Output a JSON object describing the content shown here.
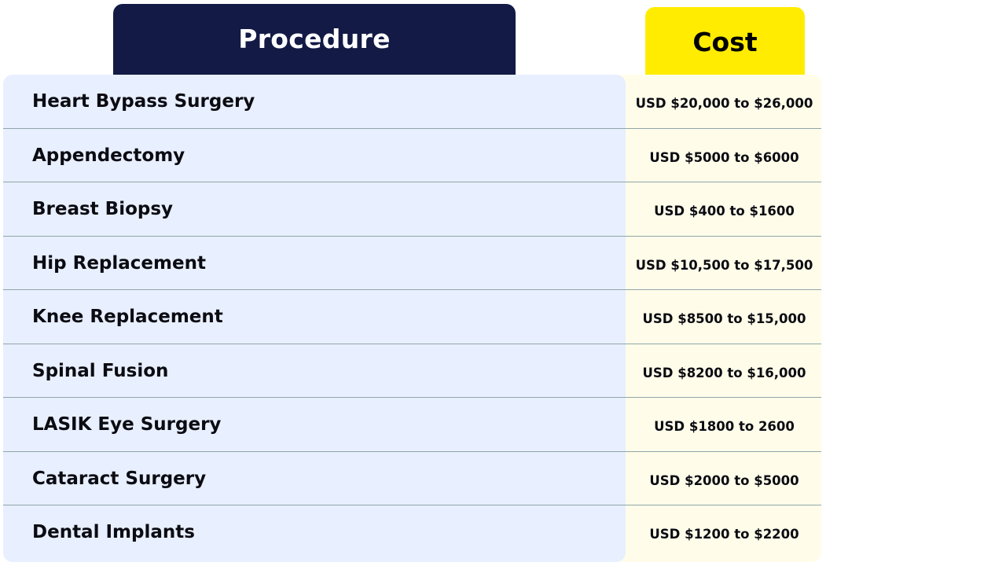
{
  "table": {
    "headers": {
      "procedure": "Procedure",
      "cost": "Cost"
    },
    "rows": [
      {
        "procedure": "Heart Bypass Surgery",
        "cost": "USD $20,000 to $26,000"
      },
      {
        "procedure": "Appendectomy",
        "cost": "USD $5000 to $6000"
      },
      {
        "procedure": "Breast Biopsy",
        "cost": "USD $400 to $1600"
      },
      {
        "procedure": "Hip Replacement",
        "cost": "USD $10,500 to $17,500"
      },
      {
        "procedure": "Knee Replacement",
        "cost": "USD $8500 to $15,000"
      },
      {
        "procedure": "Spinal Fusion",
        "cost": "USD $8200 to $16,000"
      },
      {
        "procedure": "LASIK Eye Surgery",
        "cost": "USD $1800 to 2600"
      },
      {
        "procedure": "Cataract Surgery",
        "cost": "USD $2000 to $5000"
      },
      {
        "procedure": "Dental Implants",
        "cost": "USD $1200 to $2200"
      }
    ]
  },
  "colors": {
    "procedure_header_bg": "#121a45",
    "cost_header_bg": "#ffec00",
    "procedure_column_bg": "#e8effe",
    "cost_column_bg": "#fffde9",
    "divider": "#8fa6aa"
  }
}
